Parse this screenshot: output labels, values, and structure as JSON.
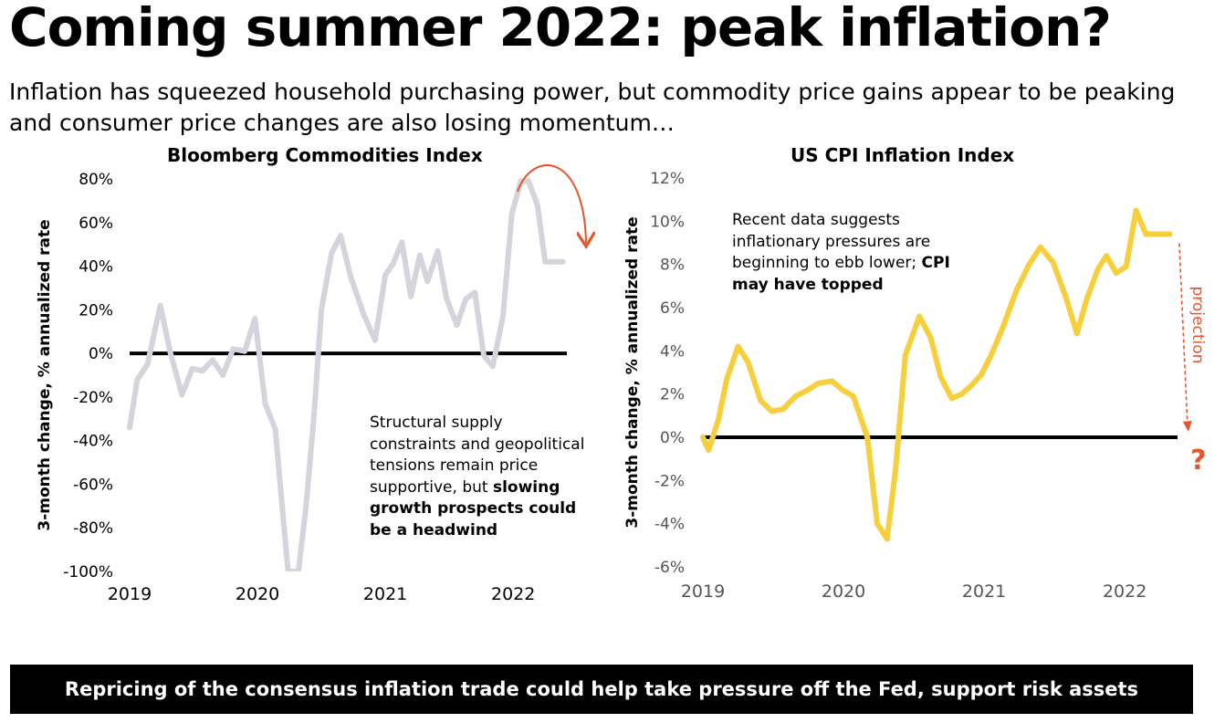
{
  "header": {
    "title": "Coming summer 2022: peak inflation?",
    "subtitle": "Inflation has squeezed household purchasing power, but commodity price gains appear to be peaking and consumer price changes are also losing momentum…"
  },
  "colors": {
    "commodities_line": "#d4d4dc",
    "cpi_line": "#f7cf3d",
    "zero_line": "#000000",
    "accent": "#e8552a",
    "banner_bg": "#000000"
  },
  "notes": {
    "commodities_plain": "Structural supply constraints and geopolitical tensions remain price supportive, but ",
    "commodities_bold": "slowing growth prospects could be a headwind",
    "cpi_plain": "Recent data suggests inflationary pressures are beginning to ebb lower; ",
    "cpi_bold": "CPI may have topped",
    "projection_label": "projection",
    "question_mark": "?"
  },
  "footer": {
    "banner": "Repricing of the consensus inflation trade could help take pressure off the Fed, support risk assets"
  },
  "chart_data": [
    {
      "type": "line",
      "title": "Bloomberg Commodities Index",
      "ylabel": "3-month change, % annualized rate",
      "xlabel": "",
      "ylim": [
        -100,
        80
      ],
      "ytick_values": [
        80,
        60,
        40,
        20,
        0,
        -20,
        -40,
        -60,
        -80,
        -100
      ],
      "ytick_labels": [
        "80%",
        "60%",
        "40%",
        "20%",
        "0%",
        "-20%",
        "-40%",
        "-60%",
        "-80%",
        "-100%"
      ],
      "xlim": [
        2019,
        2022.42
      ],
      "xtick_values": [
        2019,
        2020,
        2021,
        2022
      ],
      "xtick_labels": [
        "2019",
        "2020",
        "2021",
        "2022"
      ],
      "series": [
        {
          "name": "Bloomberg Commodities Index",
          "x": [
            2019.0,
            2019.06,
            2019.14,
            2019.24,
            2019.32,
            2019.41,
            2019.49,
            2019.57,
            2019.65,
            2019.73,
            2019.81,
            2019.9,
            2019.98,
            2020.06,
            2020.14,
            2020.2,
            2020.24,
            2020.28,
            2020.32,
            2020.38,
            2020.44,
            2020.5,
            2020.58,
            2020.65,
            2020.73,
            2020.83,
            2020.92,
            2021.0,
            2021.06,
            2021.13,
            2021.2,
            2021.27,
            2021.33,
            2021.41,
            2021.48,
            2021.56,
            2021.63,
            2021.7,
            2021.77,
            2021.84,
            2021.92,
            2021.99,
            2022.06,
            2022.12,
            2022.19,
            2022.25,
            2022.3,
            2022.35,
            2022.39
          ],
          "values": [
            -34,
            -12,
            -5,
            22,
            0,
            -19,
            -7,
            -8,
            -3,
            -10,
            2,
            1,
            16,
            -23,
            -35,
            -75,
            -100,
            -100,
            -100,
            -70,
            -30,
            20,
            46,
            54,
            35,
            18,
            6,
            36,
            41,
            51,
            26,
            45,
            33,
            47,
            25,
            13,
            25,
            28,
            -1,
            -6,
            17,
            64,
            79,
            79,
            68,
            42,
            42,
            42,
            42
          ]
        }
      ]
    },
    {
      "type": "line",
      "title": "US CPI Inflation Index",
      "ylabel": "3-month change, % annualized rate",
      "xlabel": "",
      "ylim": [
        -6,
        12
      ],
      "ytick_values": [
        12,
        10,
        8,
        6,
        4,
        2,
        0,
        -2,
        -4,
        -6
      ],
      "ytick_labels": [
        "12%",
        "10%",
        "8%",
        "6%",
        "4%",
        "2%",
        "0%",
        "-2%",
        "-4%",
        "-6%"
      ],
      "xlim": [
        2019,
        2022.33
      ],
      "xtick_values": [
        2019,
        2020,
        2021,
        2022
      ],
      "xtick_labels": [
        "2019",
        "2020",
        "2021",
        "2022"
      ],
      "series": [
        {
          "name": "US CPI Inflation Index",
          "x": [
            2019.0,
            2019.04,
            2019.11,
            2019.17,
            2019.25,
            2019.32,
            2019.41,
            2019.49,
            2019.57,
            2019.66,
            2019.75,
            2019.82,
            2019.92,
            2019.99,
            2020.07,
            2020.17,
            2020.24,
            2020.31,
            2020.37,
            2020.44,
            2020.54,
            2020.62,
            2020.69,
            2020.77,
            2020.84,
            2020.91,
            2020.98,
            2021.05,
            2021.14,
            2021.23,
            2021.32,
            2021.4,
            2021.49,
            2021.58,
            2021.66,
            2021.73,
            2021.81,
            2021.87,
            2021.94,
            2022.01,
            2022.08,
            2022.15,
            2022.24,
            2022.32
          ],
          "values": [
            0,
            -0.6,
            0.8,
            2.7,
            4.2,
            3.5,
            1.7,
            1.2,
            1.3,
            1.9,
            2.2,
            2.5,
            2.6,
            2.2,
            1.9,
            0,
            -4,
            -4.7,
            -1.5,
            3.8,
            5.6,
            4.6,
            2.8,
            1.8,
            2.0,
            2.4,
            2.9,
            3.8,
            5.2,
            6.8,
            8,
            8.8,
            8.1,
            6.5,
            4.8,
            6.4,
            7.8,
            8.4,
            7.6,
            7.9,
            10.5,
            9.4,
            9.4,
            9.4
          ]
        }
      ],
      "projection": {
        "from_value": 9.4,
        "to_value": 0.3,
        "x": 2022.42
      }
    }
  ]
}
